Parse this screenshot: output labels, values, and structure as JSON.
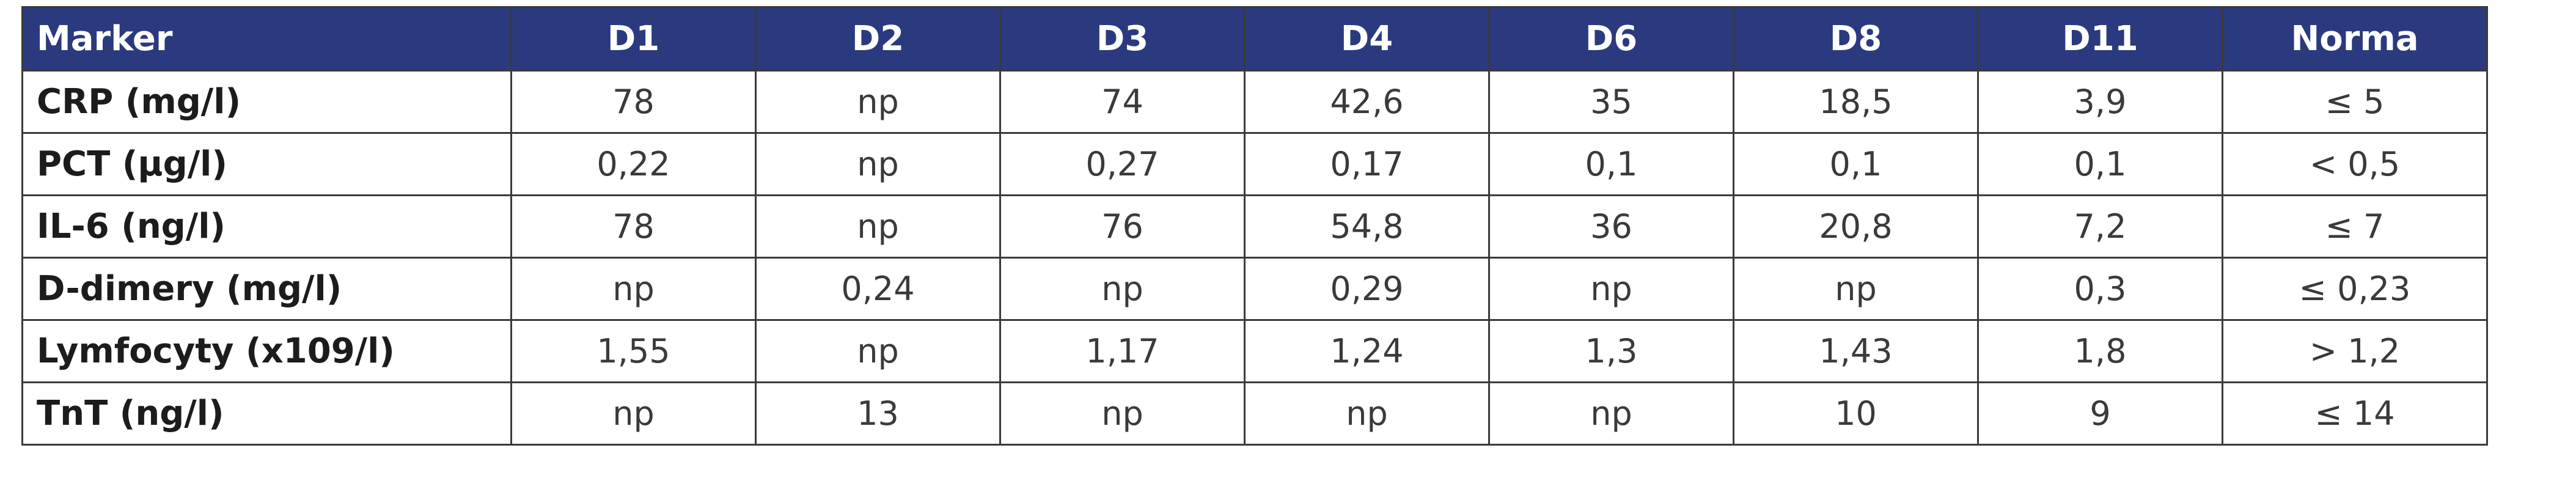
{
  "table": {
    "headers": [
      "Marker",
      "D1",
      "D2",
      "D3",
      "D4",
      "D6",
      "D8",
      "D11",
      "Norma"
    ],
    "rows": [
      [
        "CRP (mg/l)",
        "78",
        "np",
        "74",
        "42,6",
        "35",
        "18,5",
        "3,9",
        "≤ 5"
      ],
      [
        "PCT (μg/l)",
        "0,22",
        "np",
        "0,27",
        "0,17",
        "0,1",
        "0,1",
        "0,1",
        "< 0,5"
      ],
      [
        "IL-6 (ng/l)",
        "78",
        "np",
        "76",
        "54,8",
        "36",
        "20,8",
        "7,2",
        "≤ 7"
      ],
      [
        "D-dimery (mg/l)",
        "np",
        "0,24",
        "np",
        "0,29",
        "np",
        "np",
        "0,3",
        "≤ 0,23"
      ],
      [
        "Lymfocyty (x109/l)",
        "1,55",
        "np",
        "1,17",
        "1,24",
        "1,3",
        "1,43",
        "1,8",
        "> 1,2"
      ],
      [
        "TnT (ng/l)",
        "np",
        "13",
        "np",
        "np",
        "np",
        "10",
        "9",
        "≤ 14"
      ]
    ]
  },
  "colors": {
    "header_bg": "#2b3a7e",
    "header_text": "#ffffff",
    "border": "#3a3a3a",
    "cell_text": "#3a3a3a"
  }
}
